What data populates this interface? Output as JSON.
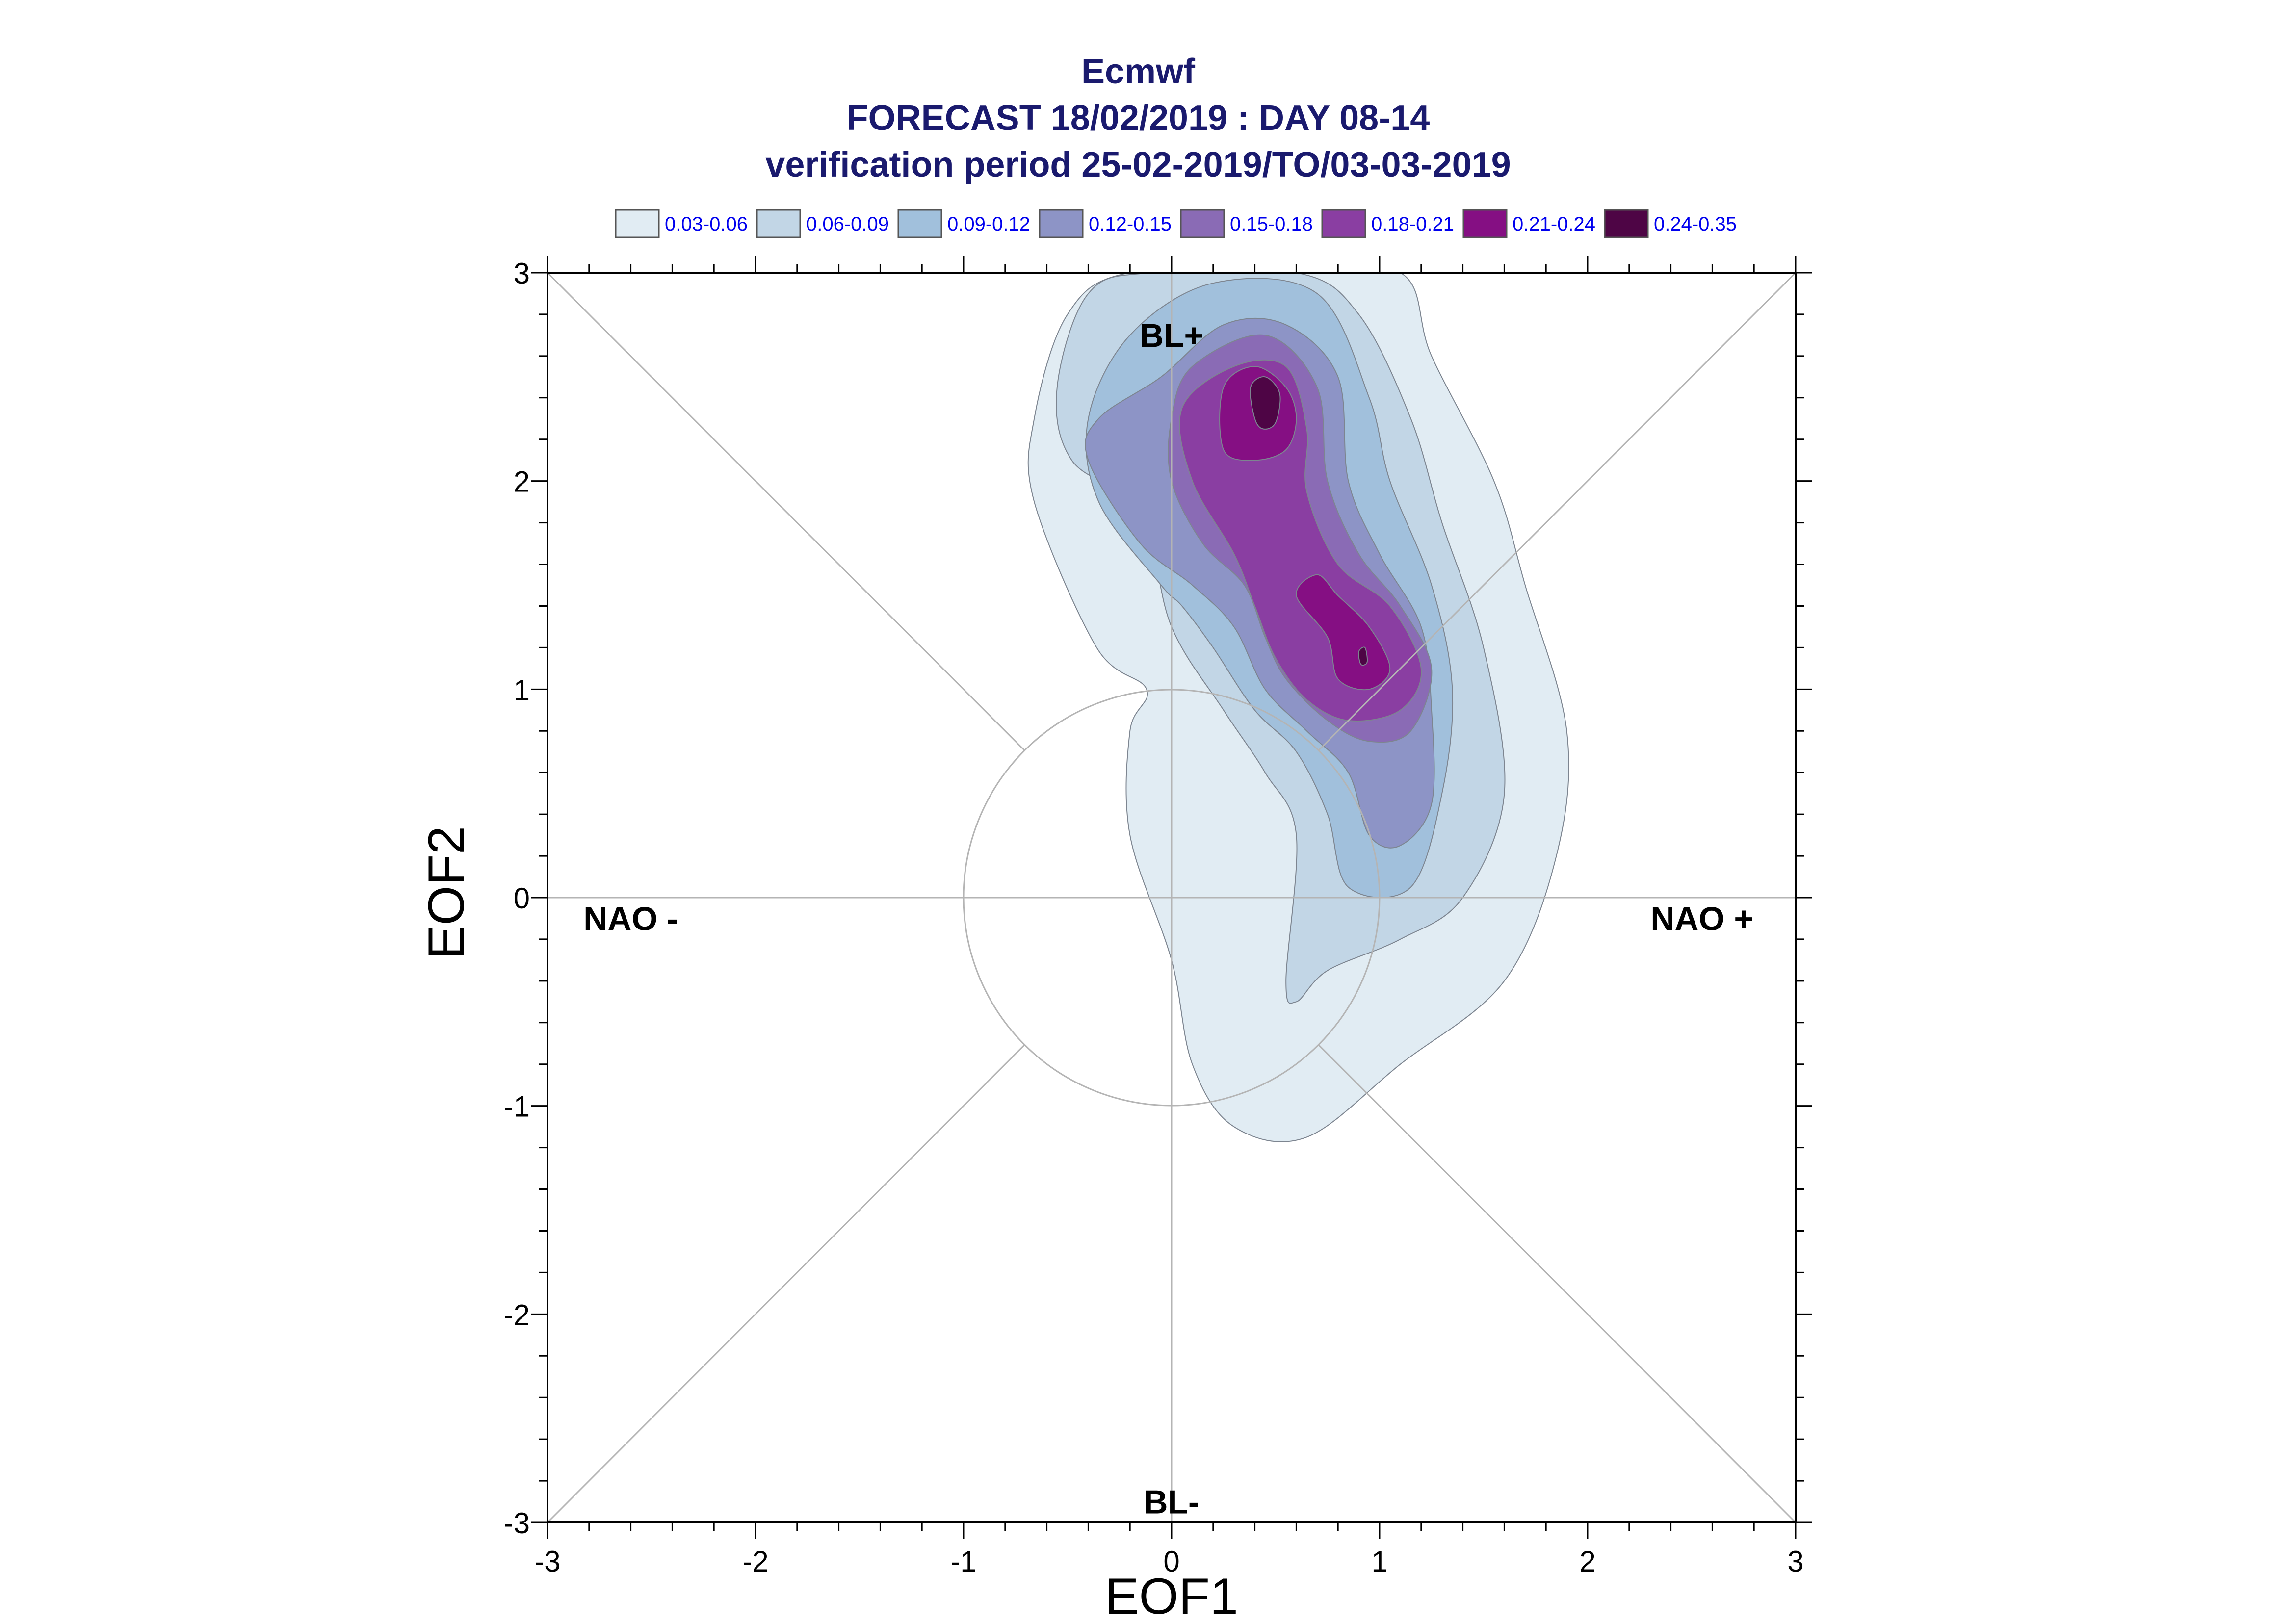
{
  "chart_data": {
    "type": "contour",
    "title_lines": [
      "Ecmwf",
      "FORECAST 18/02/2019 : DAY 08-14",
      "verification period 25-02-2019/TO/03-03-2019"
    ],
    "xlabel": "EOF1",
    "ylabel": "EOF2",
    "xlim": [
      -3,
      3
    ],
    "ylim": [
      -3,
      3
    ],
    "xticks": [
      -3,
      -2,
      -1,
      0,
      1,
      2,
      3
    ],
    "yticks": [
      -3,
      -2,
      -1,
      0,
      1,
      2,
      3
    ],
    "minor_tick_step": 0.2,
    "grid": false,
    "legend_position": "top",
    "legend": [
      {
        "label": "0.03-0.06",
        "color": "#e1ecf3"
      },
      {
        "label": "0.06-0.09",
        "color": "#c2d6e6"
      },
      {
        "label": "0.09-0.12",
        "color": "#a1c0dc"
      },
      {
        "label": "0.12-0.15",
        "color": "#8d94c6"
      },
      {
        "label": "0.15-0.18",
        "color": "#8a6bb5"
      },
      {
        "label": "0.18-0.21",
        "color": "#8a3ea2"
      },
      {
        "label": "0.21-0.24",
        "color": "#850f83"
      },
      {
        "label": "0.24-0.35",
        "color": "#4e0545"
      }
    ],
    "region_labels": [
      {
        "text": "BL+",
        "x": 0,
        "y": 2.7
      },
      {
        "text": "BL-",
        "x": 0,
        "y": -2.9
      },
      {
        "text": "NAO -",
        "x": -2.6,
        "y": -0.1
      },
      {
        "text": "NAO +",
        "x": 2.55,
        "y": -0.1
      }
    ],
    "reference_circle_radius": 1,
    "density_levels": [
      {
        "range": "0.03-0.06",
        "boundary": [
          [
            -0.12,
            1.0
          ],
          [
            -0.36,
            1.2
          ],
          [
            -0.66,
            1.9
          ],
          [
            -0.66,
            2.3
          ],
          [
            -0.5,
            2.8
          ],
          [
            -0.2,
            3.0
          ],
          [
            0.55,
            3.0
          ],
          [
            1.1,
            3.0
          ],
          [
            1.25,
            2.6
          ],
          [
            1.55,
            2.0
          ],
          [
            1.7,
            1.5
          ],
          [
            1.9,
            0.8
          ],
          [
            1.85,
            0.2
          ],
          [
            1.6,
            -0.4
          ],
          [
            1.1,
            -0.8
          ],
          [
            0.65,
            -1.15
          ],
          [
            0.3,
            -1.1
          ],
          [
            0.1,
            -0.8
          ],
          [
            0.0,
            -0.3
          ],
          [
            -0.2,
            0.3
          ],
          [
            -0.2,
            0.8
          ]
        ]
      },
      {
        "range": "0.06-0.09",
        "boundary": [
          [
            -0.15,
            1.85
          ],
          [
            -0.48,
            2.1
          ],
          [
            -0.55,
            2.45
          ],
          [
            -0.4,
            2.9
          ],
          [
            -0.1,
            3.0
          ],
          [
            0.6,
            3.0
          ],
          [
            0.9,
            2.8
          ],
          [
            1.15,
            2.3
          ],
          [
            1.3,
            1.8
          ],
          [
            1.5,
            1.2
          ],
          [
            1.6,
            0.5
          ],
          [
            1.4,
            0.0
          ],
          [
            1.1,
            -0.2
          ],
          [
            0.75,
            -0.35
          ],
          [
            0.6,
            -0.5
          ],
          [
            0.55,
            -0.4
          ],
          [
            0.6,
            0.3
          ],
          [
            0.45,
            0.6
          ],
          [
            0.25,
            0.9
          ],
          [
            0.0,
            1.3
          ]
        ]
      },
      {
        "range": "0.09-0.12",
        "boundary": [
          [
            -0.05,
            1.5
          ],
          [
            -0.35,
            1.9
          ],
          [
            -0.4,
            2.3
          ],
          [
            -0.2,
            2.7
          ],
          [
            0.2,
            2.95
          ],
          [
            0.7,
            2.9
          ],
          [
            0.95,
            2.4
          ],
          [
            1.05,
            2.0
          ],
          [
            1.25,
            1.5
          ],
          [
            1.35,
            1.0
          ],
          [
            1.3,
            0.5
          ],
          [
            1.15,
            0.05
          ],
          [
            0.85,
            0.05
          ],
          [
            0.75,
            0.4
          ],
          [
            0.6,
            0.7
          ],
          [
            0.4,
            0.9
          ],
          [
            0.2,
            1.2
          ],
          [
            0.05,
            1.4
          ]
        ]
      },
      {
        "range": "0.12-0.15",
        "boundary": [
          [
            0.1,
            1.5
          ],
          [
            -0.15,
            1.7
          ],
          [
            -0.4,
            2.1
          ],
          [
            -0.35,
            2.3
          ],
          [
            -0.05,
            2.5
          ],
          [
            0.25,
            2.75
          ],
          [
            0.55,
            2.75
          ],
          [
            0.8,
            2.5
          ],
          [
            0.85,
            2.0
          ],
          [
            1.0,
            1.65
          ],
          [
            1.2,
            1.3
          ],
          [
            1.25,
            0.9
          ],
          [
            1.25,
            0.45
          ],
          [
            1.1,
            0.25
          ],
          [
            0.95,
            0.3
          ],
          [
            0.85,
            0.6
          ],
          [
            0.65,
            0.8
          ],
          [
            0.45,
            1.0
          ],
          [
            0.3,
            1.3
          ]
        ]
      },
      {
        "range": "0.15-0.18",
        "boundary": [
          [
            0.35,
            1.5
          ],
          [
            0.15,
            1.7
          ],
          [
            0.0,
            2.0
          ],
          [
            0.0,
            2.3
          ],
          [
            0.1,
            2.55
          ],
          [
            0.45,
            2.7
          ],
          [
            0.7,
            2.45
          ],
          [
            0.75,
            2.0
          ],
          [
            0.9,
            1.65
          ],
          [
            1.1,
            1.4
          ],
          [
            1.25,
            1.1
          ],
          [
            1.15,
            0.8
          ],
          [
            0.95,
            0.75
          ],
          [
            0.75,
            0.85
          ],
          [
            0.55,
            1.05
          ],
          [
            0.45,
            1.25
          ]
        ]
      },
      {
        "range": "0.18-0.21",
        "boundary": [
          [
            0.4,
            1.4
          ],
          [
            0.3,
            1.65
          ],
          [
            0.1,
            2.0
          ],
          [
            0.05,
            2.35
          ],
          [
            0.3,
            2.55
          ],
          [
            0.55,
            2.55
          ],
          [
            0.65,
            2.25
          ],
          [
            0.65,
            1.95
          ],
          [
            0.8,
            1.6
          ],
          [
            1.05,
            1.4
          ],
          [
            1.2,
            1.1
          ],
          [
            1.1,
            0.9
          ],
          [
            0.85,
            0.85
          ],
          [
            0.65,
            0.95
          ],
          [
            0.5,
            1.15
          ]
        ]
      },
      {
        "range": "0.21-0.24",
        "boundary": [
          [
            0.25,
            2.15
          ],
          [
            0.25,
            2.45
          ],
          [
            0.4,
            2.55
          ],
          [
            0.55,
            2.45
          ],
          [
            0.6,
            2.3
          ],
          [
            0.55,
            2.15
          ],
          [
            0.4,
            2.1
          ]
        ]
      },
      {
        "range": "0.21-0.24",
        "boundary": [
          [
            0.6,
            1.45
          ],
          [
            0.7,
            1.55
          ],
          [
            0.8,
            1.45
          ],
          [
            0.95,
            1.3
          ],
          [
            1.05,
            1.1
          ],
          [
            0.95,
            1.0
          ],
          [
            0.8,
            1.05
          ],
          [
            0.75,
            1.25
          ]
        ]
      },
      {
        "range": "0.24-0.35",
        "boundary": [
          [
            0.4,
            2.3
          ],
          [
            0.38,
            2.45
          ],
          [
            0.45,
            2.5
          ],
          [
            0.52,
            2.42
          ],
          [
            0.5,
            2.28
          ],
          [
            0.44,
            2.25
          ]
        ]
      },
      {
        "range": "0.24-0.35",
        "boundary": [
          [
            0.91,
            1.12
          ],
          [
            0.9,
            1.18
          ],
          [
            0.93,
            1.2
          ],
          [
            0.94,
            1.13
          ]
        ]
      }
    ]
  }
}
